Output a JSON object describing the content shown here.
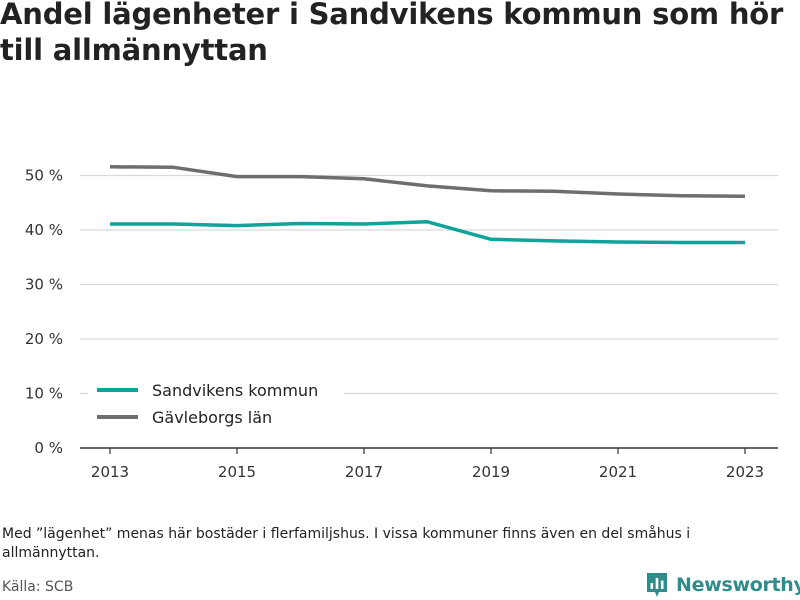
{
  "title": "Andel lägenheter i Sandvikens kommun som hör till allmännyttan",
  "note": "Med ”lägenhet” menas här bostäder i flerfamiljshus. I vissa kommuner finns även en del småhus i allmännyttan.",
  "source": "Källa: SCB",
  "brand": {
    "name": "Newsworthy",
    "color": "#2f8c8a",
    "icon": "newsworthy-logo-icon"
  },
  "chart_data": {
    "type": "line",
    "title": "Andel lägenheter i Sandvikens kommun som hör till allmännyttan",
    "xlabel": "",
    "ylabel": "",
    "x": [
      2013,
      2014,
      2015,
      2016,
      2017,
      2018,
      2019,
      2020,
      2021,
      2022,
      2023
    ],
    "x_ticks": [
      "2013",
      "2015",
      "2017",
      "2019",
      "2021",
      "2023"
    ],
    "y_ticks": [
      "0 %",
      "10 %",
      "20 %",
      "30 %",
      "40 %",
      "50 %"
    ],
    "ylim": [
      0,
      55
    ],
    "grid": true,
    "legend_position": "bottom-left",
    "series": [
      {
        "name": "Sandvikens kommun",
        "color": "#0fa39a",
        "values": [
          41.1,
          41.1,
          40.8,
          41.2,
          41.1,
          41.5,
          38.3,
          38.0,
          37.8,
          37.7,
          37.7
        ]
      },
      {
        "name": "Gävleborgs län",
        "color": "#6e6e6e",
        "values": [
          51.6,
          51.5,
          49.8,
          49.8,
          49.4,
          48.1,
          47.2,
          47.1,
          46.6,
          46.3,
          46.2
        ]
      }
    ]
  }
}
